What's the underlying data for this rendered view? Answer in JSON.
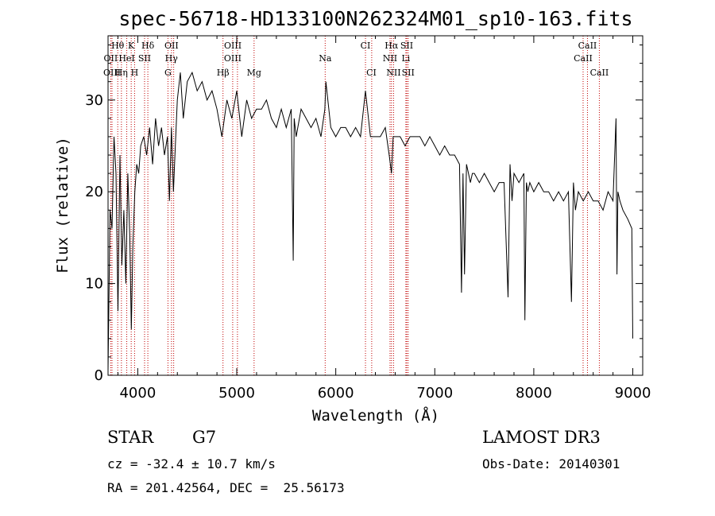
{
  "chart_data": {
    "type": "line",
    "title": "spec-56718-HD133100N262324M01_sp10-163.fits",
    "xlabel": "Wavelength (Å)",
    "ylabel": "Flux (relative)",
    "xlim": [
      3700,
      9100
    ],
    "ylim": [
      0,
      37
    ],
    "xticks": [
      "4000",
      "5000",
      "6000",
      "7000",
      "8000",
      "9000"
    ],
    "yticks": [
      "0",
      "10",
      "20",
      "30"
    ],
    "series": [
      {
        "x": [
          3700,
          3720,
          3740,
          3760,
          3780,
          3800,
          3820,
          3840,
          3860,
          3880,
          3900,
          3920,
          3935,
          3950,
          3970,
          3990,
          4010,
          4030,
          4060,
          4090,
          4120,
          4150,
          4180,
          4210,
          4240,
          4270,
          4300,
          4320,
          4340,
          4360,
          4380,
          4400,
          4430,
          4460,
          4500,
          4550,
          4600,
          4650,
          4700,
          4750,
          4800,
          4850,
          4900,
          4950,
          5000,
          5050,
          5100,
          5150,
          5200,
          5250,
          5300,
          5350,
          5400,
          5450,
          5500,
          5550,
          5570,
          5580,
          5600,
          5650,
          5700,
          5750,
          5800,
          5850,
          5890,
          5900,
          5950,
          6000,
          6050,
          6100,
          6150,
          6200,
          6250,
          6300,
          6350,
          6400,
          6450,
          6500,
          6540,
          6563,
          6580,
          6600,
          6650,
          6700,
          6750,
          6800,
          6850,
          6900,
          6950,
          7000,
          7050,
          7100,
          7150,
          7200,
          7250,
          7270,
          7285,
          7300,
          7320,
          7340,
          7360,
          7380,
          7400,
          7450,
          7500,
          7550,
          7600,
          7650,
          7700,
          7740,
          7760,
          7780,
          7800,
          7850,
          7900,
          7910,
          7925,
          7940,
          7960,
          8000,
          8050,
          8100,
          8150,
          8200,
          8250,
          8300,
          8350,
          8380,
          8400,
          8420,
          8450,
          8500,
          8550,
          8600,
          8650,
          8700,
          8750,
          8800,
          8830,
          8840,
          8850,
          8870,
          8900,
          8950,
          8990,
          9000
        ],
        "y": [
          0.5,
          18,
          16,
          26,
          22,
          7,
          24,
          12,
          18,
          10,
          22,
          15,
          5,
          14,
          20,
          23,
          22,
          25,
          26,
          24,
          27,
          23,
          28,
          25,
          27,
          24,
          26,
          19,
          27,
          20,
          25,
          30,
          33,
          28,
          32,
          33,
          31,
          32,
          30,
          31,
          29,
          26,
          30,
          28,
          31,
          26,
          30,
          28,
          29,
          29,
          30,
          28,
          27,
          29,
          27,
          29,
          12.5,
          28,
          26,
          29,
          28,
          27,
          28,
          26,
          29,
          32,
          27,
          26,
          27,
          27,
          26,
          27,
          26,
          31,
          26,
          26,
          26,
          27,
          24,
          22,
          26,
          26,
          26,
          25,
          26,
          26,
          26,
          25,
          26,
          25,
          24,
          25,
          24,
          24,
          23,
          9,
          22,
          11,
          23,
          22,
          21,
          22,
          22,
          21,
          22,
          21,
          20,
          21,
          21,
          8.5,
          23,
          19,
          22,
          21,
          22,
          6,
          21,
          20,
          21,
          20,
          21,
          20,
          20,
          19,
          20,
          19,
          20,
          8,
          21,
          18,
          20,
          19,
          20,
          19,
          19,
          18,
          20,
          19,
          28,
          11,
          20,
          19,
          18,
          17,
          16,
          4
        ]
      }
    ],
    "line_labels": [
      {
        "text": "Hθ",
        "x": 3798,
        "row": 0
      },
      {
        "text": "K",
        "x": 3934,
        "row": 0
      },
      {
        "text": "Hδ",
        "x": 4102,
        "row": 0
      },
      {
        "text": "OII",
        "x": 4341,
        "row": 0
      },
      {
        "text": "OIII",
        "x": 4960,
        "row": 0
      },
      {
        "text": "CI",
        "x": 6300,
        "row": 0
      },
      {
        "text": "Hα",
        "x": 6563,
        "row": 0
      },
      {
        "text": "SII",
        "x": 6717,
        "row": 0
      },
      {
        "text": "CaII",
        "x": 8542,
        "row": 0
      },
      {
        "text": "OII",
        "x": 3727,
        "row": 1
      },
      {
        "text": "HeI",
        "x": 3889,
        "row": 1
      },
      {
        "text": "SII",
        "x": 4069,
        "row": 1
      },
      {
        "text": "Hγ",
        "x": 4340,
        "row": 1
      },
      {
        "text": "OIII",
        "x": 4959,
        "row": 1
      },
      {
        "text": "Na",
        "x": 5893,
        "row": 1
      },
      {
        "text": "NII",
        "x": 6548,
        "row": 1
      },
      {
        "text": "Li",
        "x": 6708,
        "row": 1
      },
      {
        "text": "CaII",
        "x": 8498,
        "row": 1
      },
      {
        "text": "OIII",
        "x": 3740,
        "row": 2
      },
      {
        "text": "Hη",
        "x": 3835,
        "row": 2
      },
      {
        "text": "H",
        "x": 3968,
        "row": 2
      },
      {
        "text": "G",
        "x": 4305,
        "row": 2
      },
      {
        "text": "Hβ",
        "x": 4861,
        "row": 2
      },
      {
        "text": "Mg",
        "x": 5175,
        "row": 2
      },
      {
        "text": "CI",
        "x": 6360,
        "row": 2
      },
      {
        "text": "NII",
        "x": 6584,
        "row": 2
      },
      {
        "text": "SII",
        "x": 6731,
        "row": 2
      },
      {
        "text": "CaII",
        "x": 8662,
        "row": 2
      }
    ],
    "line_markers": [
      3727,
      3740,
      3798,
      3835,
      3889,
      3934,
      3968,
      4069,
      4102,
      4305,
      4341,
      4363,
      4861,
      4959,
      5007,
      5175,
      5893,
      6300,
      6363,
      6548,
      6563,
      6584,
      6708,
      6717,
      6731,
      8498,
      8542,
      8662
    ]
  },
  "info": {
    "object_class": "STAR",
    "subclass": "G7",
    "survey": "LAMOST DR3",
    "redshift": "cz = -32.4 ± 10.7 km/s",
    "obs_date": "Obs-Date: 20140301",
    "coords": "RA = 201.42564, DEC =  25.56173"
  },
  "colors": {
    "spectrum": "#000000",
    "line_marker": "#c00000"
  }
}
